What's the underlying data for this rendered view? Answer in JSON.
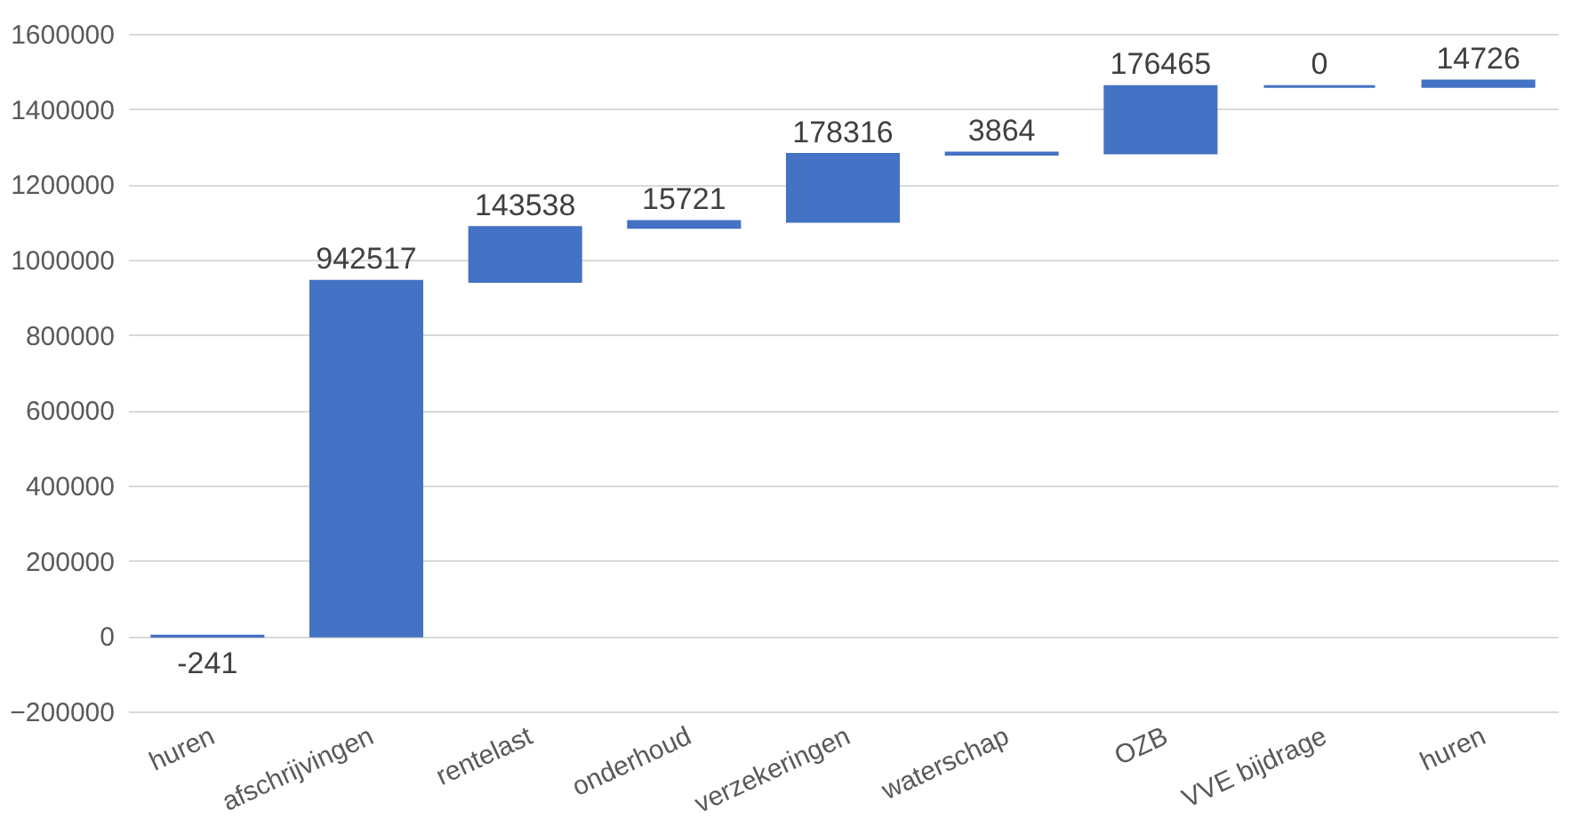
{
  "chart_data": {
    "type": "bar",
    "categories": [
      "huren",
      "afschrijvingen",
      "rentelast",
      "onderhoud",
      "verzekeringen",
      "waterschap",
      "OZB",
      "VVE bijdrage",
      "huren"
    ],
    "values": [
      -241,
      942517,
      143538,
      15721,
      178316,
      3864,
      176465,
      0,
      14726
    ],
    "base": [
      0,
      0,
      942276,
      1085814,
      1101535,
      1279851,
      1283715,
      1460180,
      1460180
    ],
    "color": "#4472c4",
    "ylim": [
      -200000,
      1600000
    ],
    "yticks": [
      -200000,
      0,
      200000,
      400000,
      600000,
      800000,
      1000000,
      1200000,
      1400000,
      1600000
    ],
    "grid": "y",
    "data_labels": true
  }
}
